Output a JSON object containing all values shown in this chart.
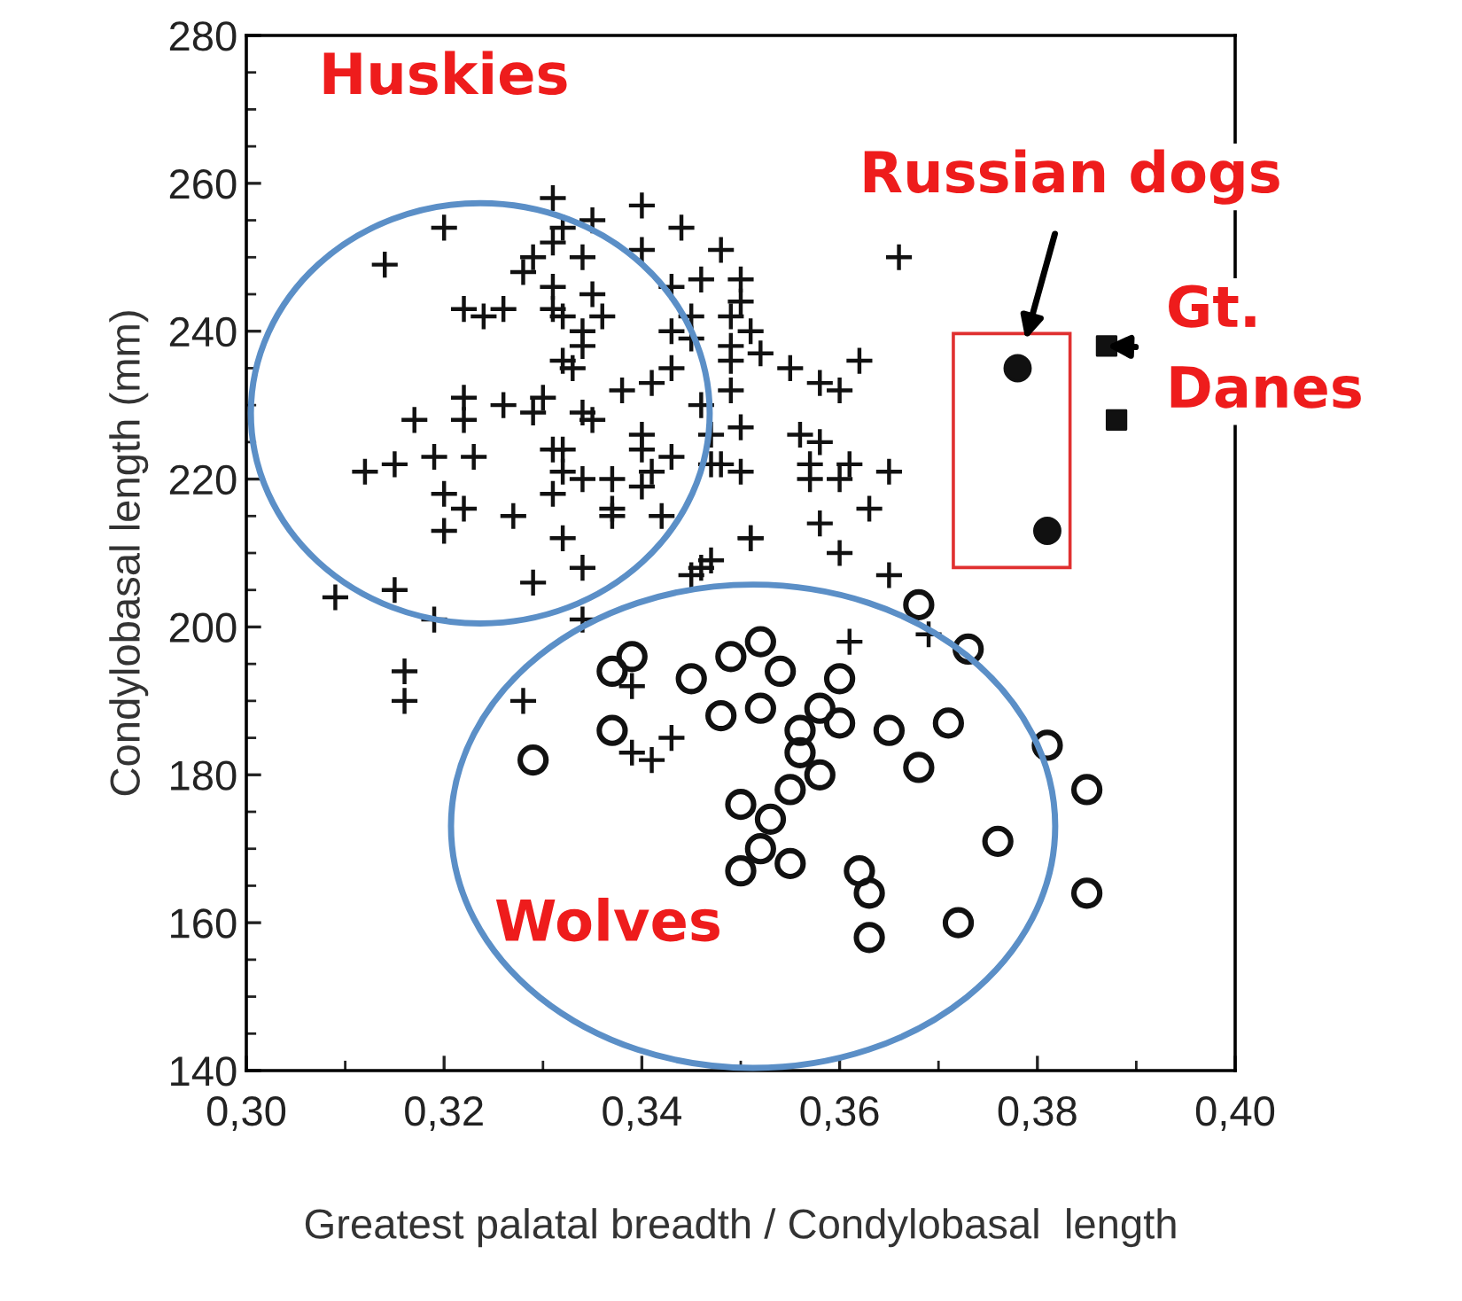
{
  "chart_data": {
    "type": "scatter",
    "xlabel": "Greatest palatal breadth / Condylobasal  length",
    "ylabel": "Condylobasal length (mm)",
    "xlim": [
      0.3,
      0.4
    ],
    "ylim": [
      140,
      280
    ],
    "xticks": [
      {
        "value": 0.3,
        "label": "0,30"
      },
      {
        "value": 0.32,
        "label": "0,32"
      },
      {
        "value": 0.34,
        "label": "0,34"
      },
      {
        "value": 0.36,
        "label": "0,36"
      },
      {
        "value": 0.38,
        "label": "0,38"
      },
      {
        "value": 0.4,
        "label": "0,40"
      }
    ],
    "yticks": [
      140,
      160,
      180,
      200,
      220,
      240,
      260,
      280
    ],
    "grid": false,
    "legend": false,
    "series": [
      {
        "marker": "cross",
        "color": "#111111",
        "x": [
          0.331,
          0.34,
          0.32,
          0.335,
          0.344,
          0.332,
          0.331,
          0.334,
          0.34,
          0.314,
          0.329,
          0.328,
          0.346,
          0.343,
          0.331,
          0.335,
          0.322,
          0.324,
          0.326,
          0.331,
          0.332,
          0.336,
          0.334,
          0.334,
          0.345,
          0.343,
          0.345,
          0.332,
          0.333,
          0.343,
          0.341,
          0.338,
          0.326,
          0.322,
          0.322,
          0.317,
          0.329,
          0.33,
          0.334,
          0.335,
          0.346,
          0.34,
          0.331,
          0.332,
          0.34,
          0.343,
          0.341,
          0.312,
          0.315,
          0.319,
          0.323,
          0.332,
          0.331,
          0.334,
          0.337,
          0.34,
          0.337,
          0.337,
          0.32,
          0.322,
          0.32,
          0.327,
          0.332,
          0.342,
          0.347,
          0.348,
          0.35,
          0.35,
          0.349,
          0.351,
          0.349,
          0.352,
          0.349,
          0.362,
          0.355,
          0.358,
          0.36,
          0.349,
          0.366,
          0.347,
          0.35,
          0.356,
          0.358,
          0.348,
          0.35,
          0.357,
          0.357,
          0.361,
          0.36,
          0.365,
          0.363,
          0.358,
          0.351,
          0.36,
          0.347,
          0.309,
          0.315,
          0.319,
          0.334,
          0.329,
          0.316,
          0.316,
          0.328,
          0.339,
          0.339,
          0.341,
          0.343,
          0.345,
          0.346,
          0.334,
          0.351,
          0.365,
          0.361,
          0.369
        ],
        "values": [
          258,
          257,
          254,
          255,
          254,
          254,
          252,
          250,
          251,
          249,
          250,
          248,
          247,
          246,
          246,
          245,
          243,
          242,
          243,
          243,
          242,
          242,
          240,
          238,
          242,
          240,
          239,
          236,
          235,
          235,
          233,
          232,
          230,
          231,
          228,
          228,
          229,
          231,
          229,
          228,
          230,
          226,
          224,
          224,
          224,
          223,
          221,
          221,
          222,
          223,
          223,
          221,
          218,
          220,
          220,
          219,
          216,
          215,
          218,
          216,
          213,
          215,
          212,
          215,
          222,
          251,
          247,
          244,
          242,
          240,
          238,
          237,
          236,
          236,
          235,
          233,
          232,
          232,
          250,
          226,
          227,
          226,
          225,
          222,
          221,
          222,
          220,
          222,
          220,
          221,
          216,
          214,
          212,
          210,
          209,
          204,
          205,
          201,
          208,
          206,
          194,
          190,
          190,
          192,
          183,
          182,
          185,
          207,
          208,
          201,
          212,
          207,
          198,
          199
        ]
      },
      {
        "marker": "circle",
        "color": "#111111",
        "x": [
          0.329,
          0.337,
          0.337,
          0.339,
          0.345,
          0.348,
          0.349,
          0.352,
          0.354,
          0.36,
          0.352,
          0.358,
          0.36,
          0.356,
          0.365,
          0.371,
          0.356,
          0.358,
          0.355,
          0.368,
          0.381,
          0.385,
          0.35,
          0.353,
          0.352,
          0.355,
          0.35,
          0.376,
          0.362,
          0.363,
          0.363,
          0.372,
          0.385,
          0.368,
          0.373
        ],
        "values": [
          182,
          186,
          194,
          196,
          193,
          188,
          196,
          198,
          194,
          193,
          189,
          189,
          187,
          186,
          186,
          187,
          183,
          180,
          178,
          181,
          184,
          178,
          176,
          174,
          170,
          168,
          167,
          171,
          167,
          164,
          158,
          160,
          164,
          203,
          197
        ]
      },
      {
        "marker": "circle",
        "color": "#111111",
        "x": [
          0.378,
          0.381
        ],
        "values": [
          235,
          213
        ]
      },
      {
        "marker": "square",
        "color": "#111111",
        "x": [
          0.387,
          0.388
        ],
        "values": [
          238,
          228
        ]
      }
    ],
    "annotations": [
      "Huskies",
      "Wolves",
      {
        "text": "Russian dogs",
        "x": 0.378,
        "y": 235
      },
      {
        "text": "Gt.\nDanes",
        "x": 0.387,
        "y": 238
      }
    ]
  }
}
